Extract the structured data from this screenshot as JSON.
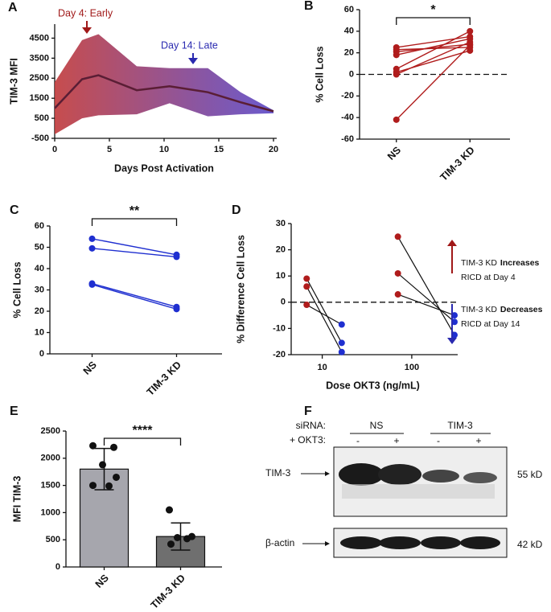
{
  "chart_data": [
    {
      "label": "A",
      "type": "band-line",
      "ylabel": "TIM-3 MFI",
      "xlabel": "Days Post Activation",
      "x": [
        0,
        2.5,
        4,
        7.5,
        10.5,
        14,
        17,
        20
      ],
      "values": [
        1000,
        2450,
        2650,
        1900,
        2100,
        1800,
        1300,
        850
      ],
      "upper": [
        2300,
        4400,
        4700,
        3100,
        3000,
        3000,
        1800,
        900
      ],
      "lower": [
        -300,
        500,
        650,
        700,
        1250,
        600,
        700,
        750
      ],
      "band_colors": [
        "#c0393a",
        "#5a48c8"
      ],
      "line_color": "#5a1e35",
      "xlim": [
        0,
        20
      ],
      "xticks": [
        0,
        5,
        10,
        15,
        20
      ],
      "ylim": [
        -500,
        5200
      ],
      "yticks": [
        -500,
        500,
        1500,
        2500,
        3500,
        4500
      ],
      "annotations": [
        {
          "text": "Day 4: Early",
          "color": "#a01818"
        },
        {
          "text": "Day 14: Late",
          "color": "#2a2ab0"
        }
      ]
    },
    {
      "label": "B",
      "type": "paired",
      "ylabel": "% Cell Loss",
      "categories": [
        "NS",
        "TIM-3 KD"
      ],
      "pairs": [
        [
          -42,
          27
        ],
        [
          0,
          30
        ],
        [
          2,
          22
        ],
        [
          5,
          40
        ],
        [
          18,
          33
        ],
        [
          21,
          28
        ],
        [
          23,
          25
        ],
        [
          25,
          35
        ]
      ],
      "color": "#b01c1c",
      "ylim": [
        -60,
        60
      ],
      "yticks": [
        -60,
        -40,
        -20,
        0,
        20,
        40,
        60
      ],
      "reference_line": 0,
      "significance": "*"
    },
    {
      "label": "C",
      "type": "paired",
      "ylabel": "% Cell Loss",
      "categories": [
        "NS",
        "TIM-3 KD"
      ],
      "pairs": [
        [
          54,
          46.5
        ],
        [
          49.5,
          45.5
        ],
        [
          33,
          22
        ],
        [
          32.5,
          21
        ]
      ],
      "color": "#1f2fd0",
      "ylim": [
        0,
        60
      ],
      "yticks": [
        0,
        10,
        20,
        30,
        40,
        50,
        60
      ],
      "significance": "**"
    },
    {
      "label": "D",
      "type": "paired-scatter",
      "ylabel": "% Difference Cell Loss",
      "xlabel": "Dose OKT3 (ng/mL)",
      "xscale": "log",
      "xlim": [
        4.5,
        300
      ],
      "xticks": [
        10,
        100
      ],
      "ylim": [
        -20,
        30
      ],
      "yticks": [
        -20,
        -10,
        0,
        10,
        20,
        30
      ],
      "reference_line": 0,
      "pairs": [
        {
          "x": [
            6.7,
            16.5
          ],
          "values": [
            9,
            -15.5
          ]
        },
        {
          "x": [
            6.7,
            16.5
          ],
          "values": [
            6,
            -19
          ]
        },
        {
          "x": [
            6.7,
            16.5
          ],
          "values": [
            -1,
            -8.5
          ]
        },
        {
          "x": [
            70,
            300
          ],
          "values": [
            25,
            -12.5
          ]
        },
        {
          "x": [
            70,
            300
          ],
          "values": [
            11,
            -7.5
          ]
        },
        {
          "x": [
            70,
            300
          ],
          "values": [
            3,
            -5
          ]
        }
      ],
      "point_colors": [
        "#b01c1c",
        "#1f2fd0"
      ],
      "annotations": [
        {
          "line1": "TIM-3 KD",
          "emphasis": "Increases",
          "line2": "RICD at Day 4",
          "color": "#a01818"
        },
        {
          "line1": "TIM-3 KD",
          "emphasis": "Decreases",
          "line2": "RICD at Day 14",
          "color": "#2a2ab0"
        }
      ]
    },
    {
      "label": "E",
      "type": "bar",
      "ylabel": "MFI TIM-3",
      "categories": [
        "NS",
        "TIM-3 KD"
      ],
      "values": [
        1800,
        560
      ],
      "errors": [
        380,
        250
      ],
      "points": [
        [
          2230,
          2200,
          1880,
          1650,
          1500,
          1490
        ],
        [
          1050,
          560,
          540,
          520,
          420
        ]
      ],
      "colors": [
        "#a6a6ad",
        "#6f6f6f"
      ],
      "ylim": [
        0,
        2500
      ],
      "yticks": [
        0,
        500,
        1000,
        1500,
        2000,
        2500
      ],
      "significance": "****"
    }
  ],
  "blot": {
    "label": "F",
    "row_labels": [
      "siRNA:",
      "+ OKT3:"
    ],
    "groups": [
      "NS",
      "TIM-3"
    ],
    "treatments": [
      "-",
      "+",
      "-",
      "+"
    ],
    "bands": [
      {
        "name": "TIM-3",
        "size": "55 kD"
      },
      {
        "name": "β-actin",
        "size": "42 kD"
      }
    ]
  }
}
